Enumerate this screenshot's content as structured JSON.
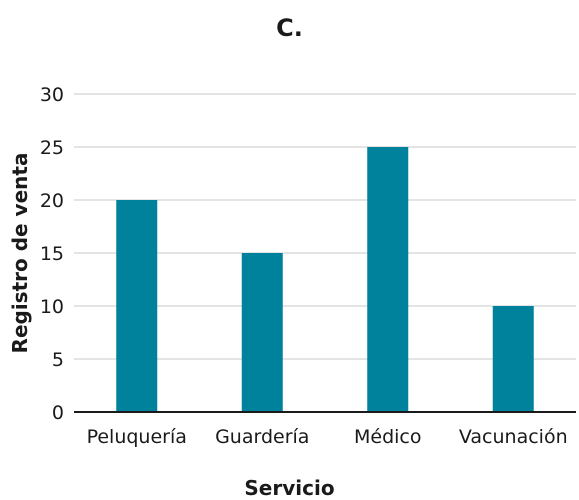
{
  "chart_data": {
    "type": "bar",
    "title": "C.",
    "xlabel": "Servicio",
    "ylabel": "Registro de venta",
    "categories": [
      "Peluquería",
      "Guardería",
      "Médico",
      "Vacunación"
    ],
    "values": [
      20,
      15,
      25,
      10
    ],
    "yticks": [
      0,
      5,
      10,
      15,
      20,
      25,
      30
    ],
    "ylim": [
      0,
      30
    ],
    "grid": true,
    "bar_color": "#00829d",
    "grid_color": "#c8c8c8",
    "axis_color": "#1a1a1a"
  }
}
